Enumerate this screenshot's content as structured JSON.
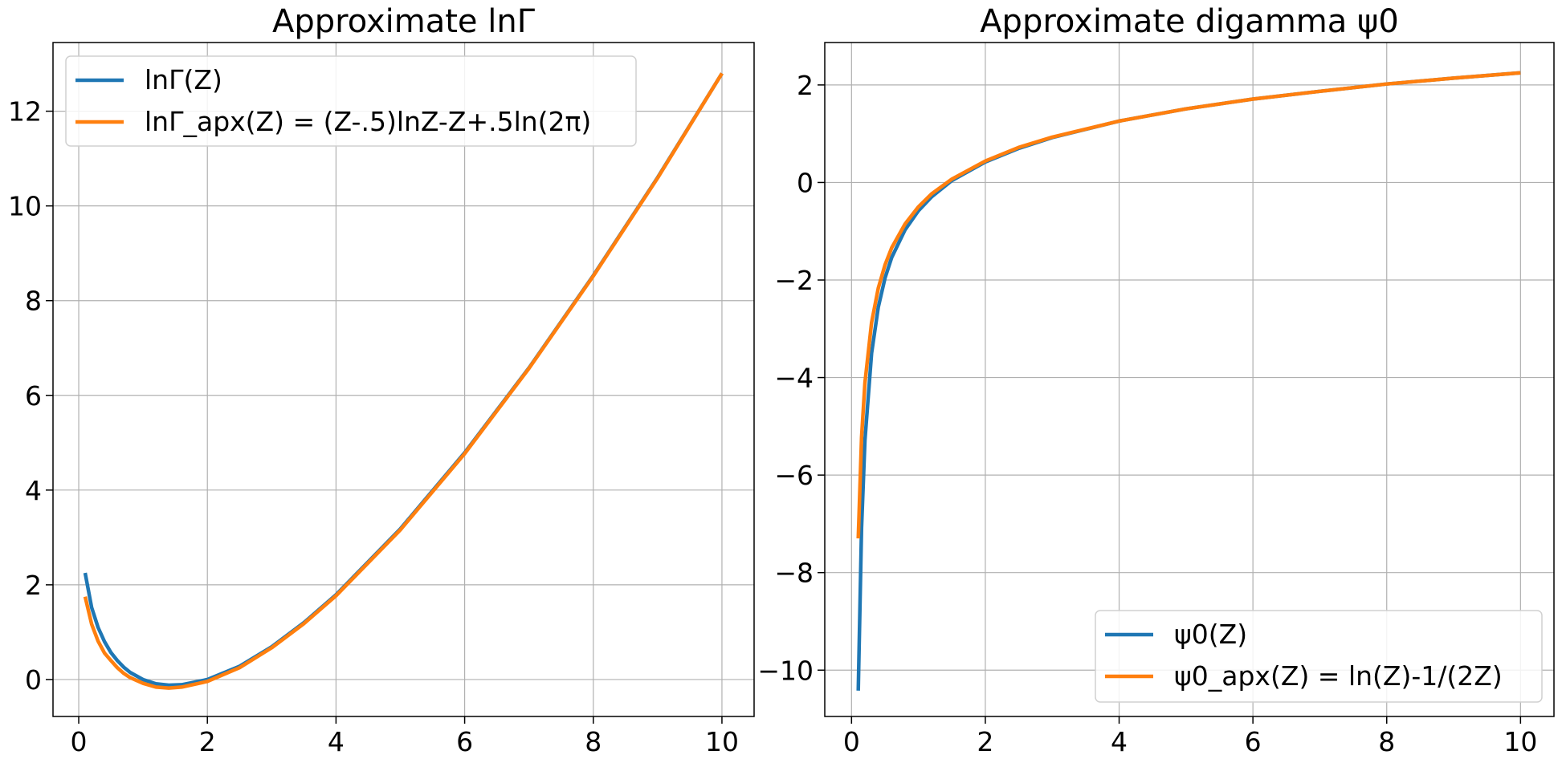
{
  "colors": {
    "series1": "#1f77b4",
    "series2": "#ff7f0e",
    "grid": "#b0b0b0",
    "axes": "#000000"
  },
  "chart_data": [
    {
      "type": "line",
      "title": "Approximate lnΓ",
      "xlabel": "",
      "ylabel": "",
      "xlim": [
        -0.4,
        10.5
      ],
      "ylim": [
        -0.78,
        13.45
      ],
      "xticks": [
        0,
        2,
        4,
        6,
        8,
        10
      ],
      "yticks": [
        0,
        2,
        4,
        6,
        8,
        10,
        12
      ],
      "xtick_labels": [
        "0",
        "2",
        "4",
        "6",
        "8",
        "10"
      ],
      "ytick_labels": [
        "0",
        "2",
        "4",
        "6",
        "8",
        "10",
        "12"
      ],
      "grid": true,
      "legend": "top-left",
      "x": [
        0.1,
        0.2,
        0.3,
        0.4,
        0.5,
        0.6,
        0.7,
        0.8,
        1.0,
        1.2,
        1.4,
        1.6,
        2.0,
        2.5,
        3.0,
        3.5,
        4.0,
        5.0,
        6.0,
        7.0,
        8.0,
        9.0,
        10.0
      ],
      "series": [
        {
          "name": "lnΓ(Z)",
          "color": "#1f77b4",
          "values": [
            2.25,
            1.52,
            1.1,
            0.8,
            0.57,
            0.4,
            0.26,
            0.15,
            0.0,
            -0.09,
            -0.12,
            -0.11,
            0.0,
            0.28,
            0.69,
            1.2,
            1.79,
            3.18,
            4.79,
            6.58,
            8.53,
            10.6,
            12.8
          ]
        },
        {
          "name": "lnΓ_apx(Z) = (Z-.5)lnZ-Z+.5ln(2π)",
          "color": "#ff7f0e",
          "values": [
            1.75,
            1.17,
            0.81,
            0.56,
            0.4,
            0.25,
            0.13,
            0.04,
            -0.08,
            -0.16,
            -0.18,
            -0.16,
            -0.04,
            0.25,
            0.67,
            1.18,
            1.77,
            3.16,
            4.77,
            6.57,
            8.52,
            10.59,
            12.8
          ]
        }
      ]
    },
    {
      "type": "line",
      "title": "Approximate digamma ψ0",
      "xlabel": "",
      "ylabel": "",
      "xlim": [
        -0.4,
        10.5
      ],
      "ylim": [
        -10.95,
        2.87
      ],
      "xticks": [
        0,
        2,
        4,
        6,
        8,
        10
      ],
      "yticks": [
        -10,
        -8,
        -6,
        -4,
        -2,
        0,
        2
      ],
      "xtick_labels": [
        "0",
        "2",
        "4",
        "6",
        "8",
        "10"
      ],
      "ytick_labels": [
        "−10",
        "−8",
        "−6",
        "−4",
        "−2",
        "0",
        "2"
      ],
      "grid": true,
      "legend": "bottom-right",
      "x": [
        0.1,
        0.15,
        0.2,
        0.3,
        0.4,
        0.5,
        0.6,
        0.8,
        1.0,
        1.2,
        1.5,
        2.0,
        2.5,
        3.0,
        4.0,
        5.0,
        6.0,
        7.0,
        8.0,
        9.0,
        10.0
      ],
      "series": [
        {
          "name": "ψ0(Z)",
          "color": "#1f77b4",
          "values": [
            -10.42,
            -7.08,
            -5.29,
            -3.5,
            -2.56,
            -1.96,
            -1.54,
            -0.97,
            -0.58,
            -0.29,
            0.04,
            0.42,
            0.7,
            0.92,
            1.26,
            1.51,
            1.71,
            1.87,
            2.02,
            2.14,
            2.25
          ]
        },
        {
          "name": "ψ0_apx(Z) = ln(Z)-1/(2Z)",
          "color": "#ff7f0e",
          "values": [
            -7.3,
            -5.23,
            -4.11,
            -2.87,
            -2.17,
            -1.69,
            -1.34,
            -0.85,
            -0.5,
            -0.23,
            0.07,
            0.44,
            0.72,
            0.93,
            1.26,
            1.51,
            1.71,
            1.87,
            2.02,
            2.14,
            2.25
          ]
        }
      ]
    }
  ]
}
